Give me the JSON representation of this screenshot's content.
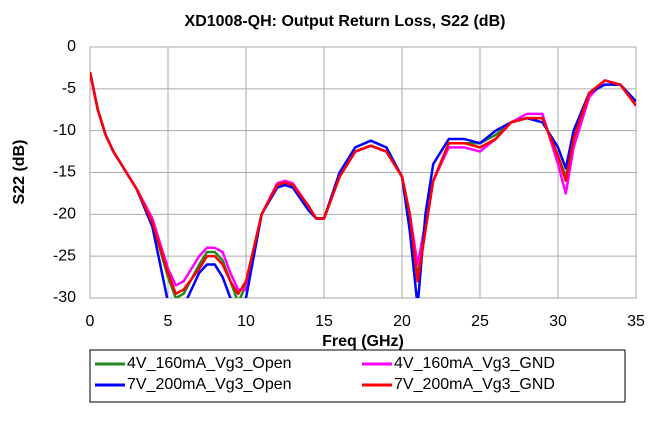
{
  "chart_data": {
    "type": "line",
    "title": "XD1008-QH: Output Return Loss, S22 (dB)",
    "x_label": "Freq (GHz)",
    "y_label": "S22 (dB)",
    "x": [
      0,
      0.5,
      1,
      1.5,
      2,
      3,
      4,
      5,
      5.5,
      6,
      7,
      7.5,
      8,
      8.5,
      9,
      9.5,
      10,
      11,
      12,
      12.5,
      13,
      14,
      14.5,
      15,
      16,
      17,
      18,
      19,
      20,
      20.5,
      21,
      21.5,
      22,
      23,
      24,
      25,
      26,
      27,
      28,
      29,
      30,
      30.5,
      31,
      32,
      33,
      34,
      35
    ],
    "series": [
      {
        "name": "4V_160mA_Vg3_Open",
        "color": "#1f8a1f",
        "values": [
          -3,
          -7.5,
          -10.5,
          -12.5,
          -14,
          -17,
          -21,
          -27.5,
          -30,
          -29.5,
          -26,
          -24.5,
          -24.5,
          -25.5,
          -28,
          -30.5,
          -28.5,
          -20,
          -16.5,
          -16.2,
          -16.5,
          -19,
          -20.5,
          -20.5,
          -15.5,
          -12.5,
          -11.8,
          -12.5,
          -15.5,
          -20,
          -27.5,
          -21.5,
          -16,
          -11.5,
          -11.5,
          -11.5,
          -10.5,
          -9,
          -8.5,
          -8.5,
          -13,
          -15.5,
          -11,
          -5.5,
          -4,
          -4.5,
          -7
        ]
      },
      {
        "name": "4V_160mA_Vg3_GND",
        "color": "#ff00ff",
        "values": [
          -3,
          -7.5,
          -10.5,
          -12.5,
          -14,
          -17,
          -20.5,
          -26.5,
          -28.5,
          -28,
          -25,
          -24,
          -24,
          -24.5,
          -27,
          -29,
          -29,
          -20,
          -16.3,
          -16,
          -16.3,
          -19,
          -20.5,
          -20.5,
          -15.5,
          -12.5,
          -11.8,
          -12.5,
          -15.5,
          -20,
          -26,
          -21,
          -16,
          -12,
          -12,
          -12.5,
          -11,
          -9,
          -8,
          -8,
          -14,
          -17.5,
          -12,
          -6,
          -4,
          -4.5,
          -7
        ]
      },
      {
        "name": "7V_200mA_Vg3_Open",
        "color": "#0000ff",
        "values": [
          -3,
          -7.5,
          -10.5,
          -12.5,
          -14,
          -17,
          -21.5,
          -30.5,
          -31,
          -31,
          -27,
          -26,
          -26,
          -27.5,
          -30,
          -31,
          -30,
          -20,
          -16.8,
          -16.5,
          -16.8,
          -19.5,
          -20.5,
          -20.5,
          -15,
          -12,
          -11.2,
          -12,
          -15.5,
          -22,
          -31,
          -20,
          -14,
          -11,
          -11,
          -11.5,
          -10,
          -9,
          -8.5,
          -9,
          -12,
          -14.5,
          -10,
          -5.5,
          -4.5,
          -4.5,
          -6.5
        ]
      },
      {
        "name": "7V_200mA_Vg3_GND",
        "color": "#ff0000",
        "values": [
          -3,
          -7.5,
          -10.5,
          -12.5,
          -14,
          -17,
          -21,
          -27,
          -29.5,
          -29,
          -26.5,
          -25,
          -25,
          -26,
          -28,
          -29.5,
          -28,
          -20,
          -16.5,
          -16.2,
          -16.5,
          -19,
          -20.5,
          -20.5,
          -15.5,
          -12.5,
          -11.8,
          -12.5,
          -15.5,
          -20,
          -28,
          -22,
          -16,
          -11.5,
          -11.5,
          -12,
          -11,
          -9,
          -8.5,
          -8.5,
          -13,
          -16,
          -11,
          -5.5,
          -4,
          -4.5,
          -7
        ]
      }
    ],
    "xlim": [
      0,
      35
    ],
    "xticks": [
      0,
      5,
      10,
      15,
      20,
      25,
      30,
      35
    ],
    "ylim": [
      -30,
      0
    ],
    "yticks": [
      0,
      -5,
      -10,
      -15,
      -20,
      -25,
      -30
    ],
    "grid": true
  }
}
